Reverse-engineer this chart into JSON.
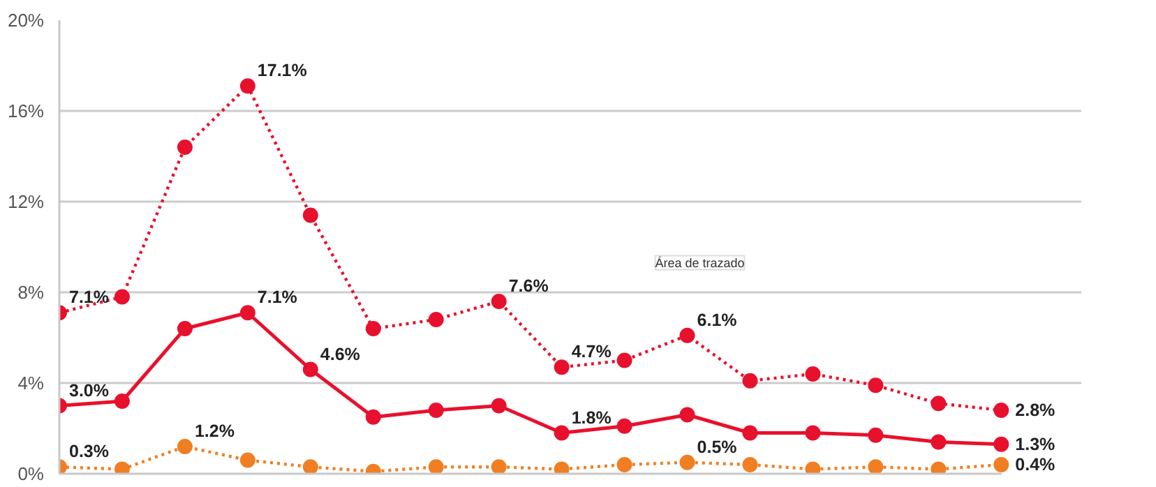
{
  "chart_data": {
    "type": "line",
    "categories": [
      null,
      null,
      null,
      null,
      null,
      null,
      null,
      null,
      null,
      null,
      null,
      null,
      null,
      null,
      null,
      null
    ],
    "ylim": [
      0,
      20
    ],
    "yticks": [
      {
        "value": 0,
        "label": "0%"
      },
      {
        "value": 4,
        "label": "4%"
      },
      {
        "value": 8,
        "label": "8%"
      },
      {
        "value": 12,
        "label": "12%"
      },
      {
        "value": 16,
        "label": "16%"
      },
      {
        "value": 20,
        "label": "20%"
      }
    ],
    "tick_labels": "y",
    "grid": "y",
    "marker": "circle",
    "annotations": [
      "Área de trazado"
    ],
    "series": [
      {
        "color": "#e8112d",
        "line_style": "solid",
        "values": [
          3.0,
          3.2,
          6.4,
          7.1,
          4.6,
          2.5,
          2.8,
          3.0,
          1.8,
          2.1,
          2.6,
          1.8,
          1.8,
          1.7,
          1.4,
          1.3
        ],
        "value_labels": [
          "3.0%",
          null,
          null,
          "7.1%",
          "4.6%",
          null,
          null,
          null,
          "1.8%",
          null,
          null,
          null,
          null,
          null,
          null,
          "1.3%"
        ]
      },
      {
        "color": "#f07f23",
        "line_style": "dotted",
        "values": [
          0.3,
          0.2,
          1.2,
          0.6,
          0.3,
          0.1,
          0.3,
          0.3,
          0.2,
          0.4,
          0.5,
          0.4,
          0.2,
          0.3,
          0.2,
          0.4
        ],
        "value_labels": [
          "0.3%",
          null,
          "1.2%",
          null,
          null,
          null,
          null,
          null,
          null,
          null,
          "0.5%",
          null,
          null,
          null,
          null,
          "0.4%"
        ]
      },
      {
        "color": "#e8112d",
        "line_style": "dotted",
        "values": [
          7.1,
          7.8,
          14.4,
          17.1,
          11.4,
          6.4,
          6.8,
          7.6,
          4.7,
          5.0,
          6.1,
          4.1,
          4.4,
          3.9,
          3.1,
          2.8
        ],
        "value_labels": [
          "7.1%",
          null,
          null,
          "17.1%",
          null,
          null,
          null,
          "7.6%",
          "4.7%",
          null,
          "6.1%",
          null,
          null,
          null,
          null,
          "2.8%"
        ]
      }
    ]
  }
}
